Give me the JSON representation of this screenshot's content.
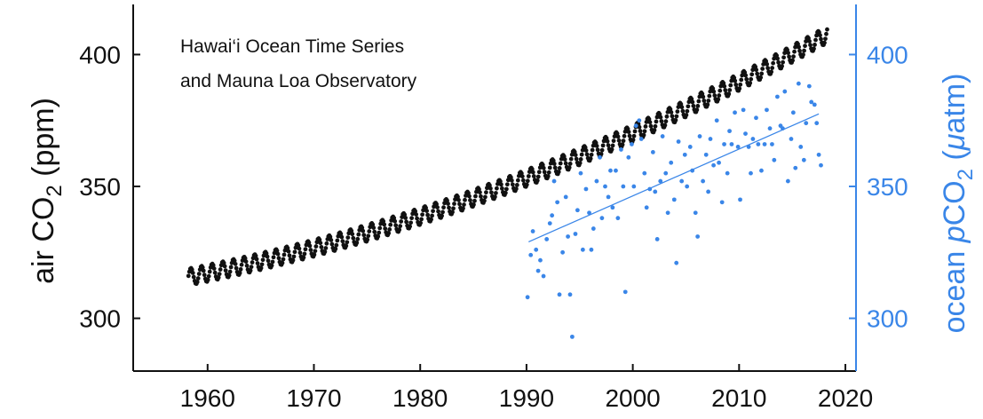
{
  "chart_data": {
    "type": "scatter",
    "annotation": [
      "Hawai‘i Ocean Time Series",
      "and Mauna Loa Observatory"
    ],
    "ylabel_left": {
      "pre": "air CO",
      "sub": "2",
      "post": " (ppm)"
    },
    "ylabel_right": {
      "pre": "ocean ",
      "italic": "p",
      "mid": "CO",
      "sub": "2",
      "post": " (",
      "mu": "μ",
      "tail": "atm)"
    },
    "xlim": [
      1953,
      2021
    ],
    "ylim_left": [
      280,
      419
    ],
    "ylim_right": [
      280,
      419
    ],
    "x_ticks": [
      1960,
      1970,
      1980,
      1990,
      2000,
      2010,
      2020
    ],
    "x_tick_labels": [
      "1960",
      "1970",
      "1980",
      "1990",
      "2000",
      "2010",
      "2020"
    ],
    "y_ticks_left": [
      300,
      350,
      400
    ],
    "y_tick_labels_left": [
      "300",
      "350",
      "400"
    ],
    "y_ticks_right": [
      300,
      350,
      400
    ],
    "y_tick_labels_right": [
      "300",
      "350",
      "400"
    ],
    "colors": {
      "air": "#111111",
      "ocean": "#3a86e8",
      "axis": "#111111"
    },
    "grid": false,
    "series": [
      {
        "axis": "left",
        "marker": "dot",
        "x_start": 1958.2,
        "x_end": 2018.3,
        "points_per_year": 12,
        "trend_poly": {
          "x0": 1958,
          "c0": 315.5,
          "c1": 0.78,
          "c2": 0.0124
        },
        "seasonal_amplitude": 3.2
      },
      {
        "axis": "right",
        "marker": "dot",
        "points": [
          [
            1990.1,
            308
          ],
          [
            1990.4,
            324
          ],
          [
            1990.6,
            333
          ],
          [
            1990.9,
            326
          ],
          [
            1991.1,
            318
          ],
          [
            1991.3,
            322
          ],
          [
            1991.6,
            316
          ],
          [
            1991.9,
            330
          ],
          [
            1992.2,
            336
          ],
          [
            1992.4,
            339
          ],
          [
            1992.6,
            352
          ],
          [
            1992.9,
            344
          ],
          [
            1993.1,
            309
          ],
          [
            1993.4,
            325
          ],
          [
            1993.7,
            346
          ],
          [
            1993.9,
            331
          ],
          [
            1994.1,
            309
          ],
          [
            1994.3,
            293
          ],
          [
            1994.6,
            332
          ],
          [
            1994.8,
            341
          ],
          [
            1995.1,
            355
          ],
          [
            1995.3,
            326
          ],
          [
            1995.6,
            349
          ],
          [
            1995.9,
            340
          ],
          [
            1996.1,
            326
          ],
          [
            1996.3,
            334
          ],
          [
            1996.6,
            352
          ],
          [
            1996.9,
            361
          ],
          [
            1997.1,
            338
          ],
          [
            1997.4,
            350
          ],
          [
            1997.7,
            346
          ],
          [
            1997.9,
            356
          ],
          [
            1998.1,
            342
          ],
          [
            1998.4,
            356
          ],
          [
            1998.6,
            338
          ],
          [
            1998.9,
            364
          ],
          [
            1999.1,
            350
          ],
          [
            1999.3,
            310
          ],
          [
            1999.6,
            361
          ],
          [
            1999.9,
            366
          ],
          [
            2000.1,
            350
          ],
          [
            2000.3,
            373
          ],
          [
            2000.6,
            375
          ],
          [
            2000.8,
            368
          ],
          [
            2001.1,
            355
          ],
          [
            2001.3,
            342
          ],
          [
            2001.6,
            349
          ],
          [
            2001.9,
            363
          ],
          [
            2002.1,
            348
          ],
          [
            2002.3,
            330
          ],
          [
            2002.6,
            352
          ],
          [
            2002.8,
            369
          ],
          [
            2003.1,
            355
          ],
          [
            2003.3,
            340
          ],
          [
            2003.6,
            359
          ],
          [
            2003.9,
            345
          ],
          [
            2004.1,
            321
          ],
          [
            2004.3,
            367
          ],
          [
            2004.6,
            352
          ],
          [
            2004.9,
            362
          ],
          [
            2005.1,
            350
          ],
          [
            2005.4,
            365
          ],
          [
            2005.6,
            356
          ],
          [
            2005.9,
            340
          ],
          [
            2006.1,
            331
          ],
          [
            2006.3,
            369
          ],
          [
            2006.6,
            352
          ],
          [
            2006.9,
            362
          ],
          [
            2007.1,
            348
          ],
          [
            2007.3,
            368
          ],
          [
            2007.6,
            358
          ],
          [
            2007.9,
            375
          ],
          [
            2008.1,
            359
          ],
          [
            2008.4,
            344
          ],
          [
            2008.6,
            366
          ],
          [
            2008.9,
            355
          ],
          [
            2009.1,
            371
          ],
          [
            2009.3,
            366
          ],
          [
            2009.6,
            378
          ],
          [
            2009.9,
            365
          ],
          [
            2010.1,
            345
          ],
          [
            2010.4,
            379
          ],
          [
            2010.6,
            370
          ],
          [
            2010.9,
            365
          ],
          [
            2011.1,
            355
          ],
          [
            2011.3,
            368
          ],
          [
            2011.6,
            376
          ],
          [
            2011.8,
            366
          ],
          [
            2012.1,
            356
          ],
          [
            2012.4,
            366
          ],
          [
            2012.6,
            379
          ],
          [
            2012.9,
            372
          ],
          [
            2013.1,
            366
          ],
          [
            2013.3,
            360
          ],
          [
            2013.6,
            384
          ],
          [
            2013.9,
            373
          ],
          [
            2014.1,
            372
          ],
          [
            2014.3,
            386
          ],
          [
            2014.6,
            352
          ],
          [
            2014.9,
            368
          ],
          [
            2015.1,
            378
          ],
          [
            2015.3,
            357
          ],
          [
            2015.6,
            389
          ],
          [
            2015.8,
            365
          ],
          [
            2016.1,
            360
          ],
          [
            2016.3,
            374
          ],
          [
            2016.6,
            388
          ],
          [
            2016.8,
            382
          ],
          [
            2017.1,
            381
          ],
          [
            2017.3,
            374
          ],
          [
            2017.5,
            362
          ],
          [
            2017.7,
            358
          ]
        ],
        "fit_line": {
          "x": [
            1990.2,
            2017.5
          ],
          "y": [
            329,
            377.5
          ]
        }
      }
    ]
  }
}
